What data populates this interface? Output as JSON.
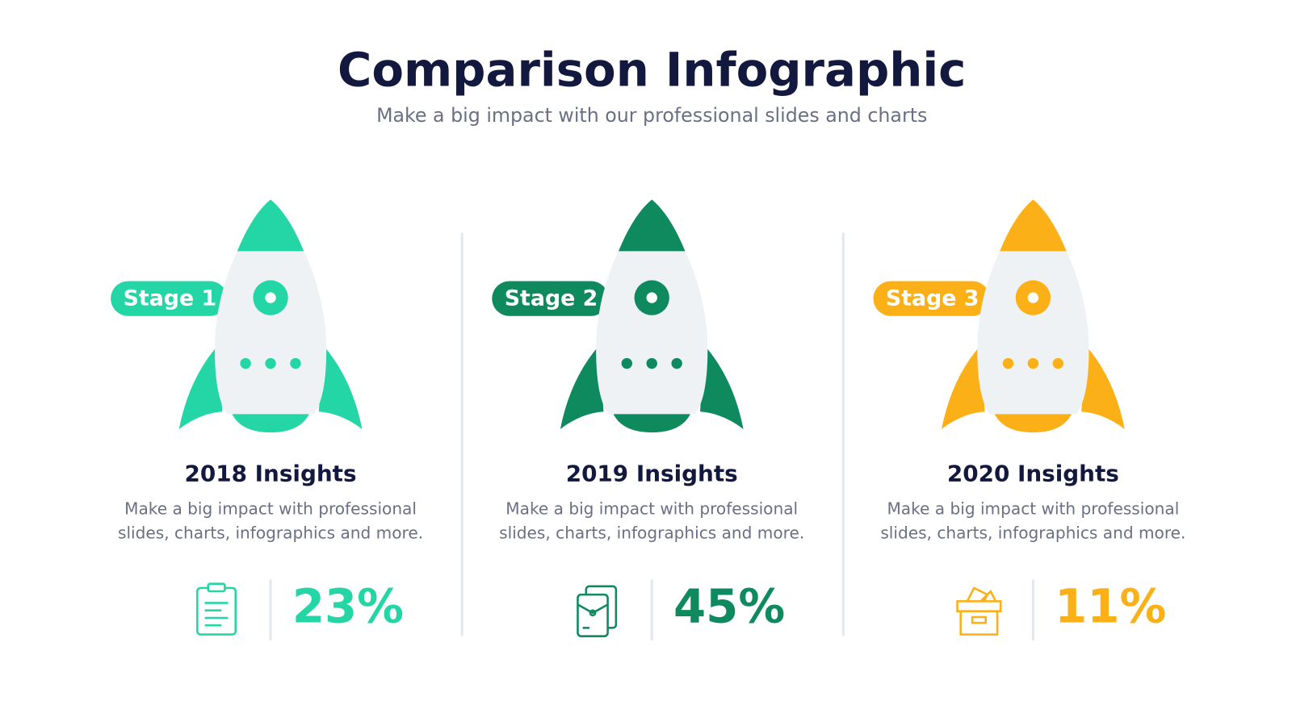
{
  "header": {
    "title": "Comparison Infographic",
    "subtitle": "Make a big impact with our professional slides and charts"
  },
  "stages": [
    {
      "tag": "Stage 1",
      "heading": "2018 Insights",
      "text": [
        "Make a big impact with professional",
        "slides, charts, infographics and more."
      ],
      "value": "23%",
      "color": "#24d6a6",
      "icon": "clipboard"
    },
    {
      "tag": "Stage 2",
      "heading": "2019 Insights",
      "text": [
        "Make a big impact with professional",
        "slides, charts, infographics and more."
      ],
      "value": "45%",
      "color": "#0f8a5f",
      "icon": "documents"
    },
    {
      "tag": "Stage 3",
      "heading": "2020 Insights",
      "text": [
        "Make a big impact with professional",
        "slides, charts, infographics and more."
      ],
      "value": "11%",
      "color": "#fbb017",
      "icon": "box"
    }
  ]
}
